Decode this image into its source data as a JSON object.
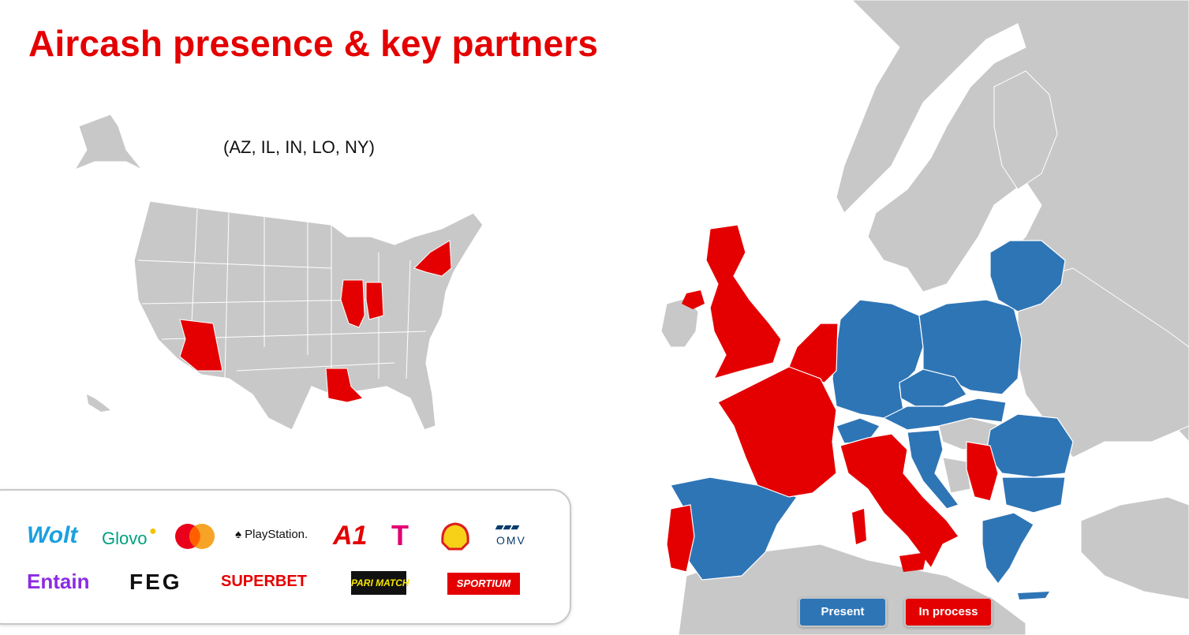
{
  "title": "Aircash presence & key partners",
  "us_states_note": "(AZ, IL, IN, LO, NY)",
  "colors": {
    "present": "#2e75b6",
    "in_process": "#e40000",
    "other": "#c8c8c8",
    "accent": "#e40000"
  },
  "partners": {
    "row1": [
      "Wolt",
      "Glovo",
      "Mastercard",
      "PlayStation.",
      "A1",
      "T",
      "Shell",
      "OMV"
    ],
    "row2": [
      "Entain",
      "FEG",
      "SUPERBET",
      "PARI MATCH",
      "SPORTIUM"
    ]
  },
  "legend": {
    "present": "Present",
    "in_process": "In process"
  }
}
